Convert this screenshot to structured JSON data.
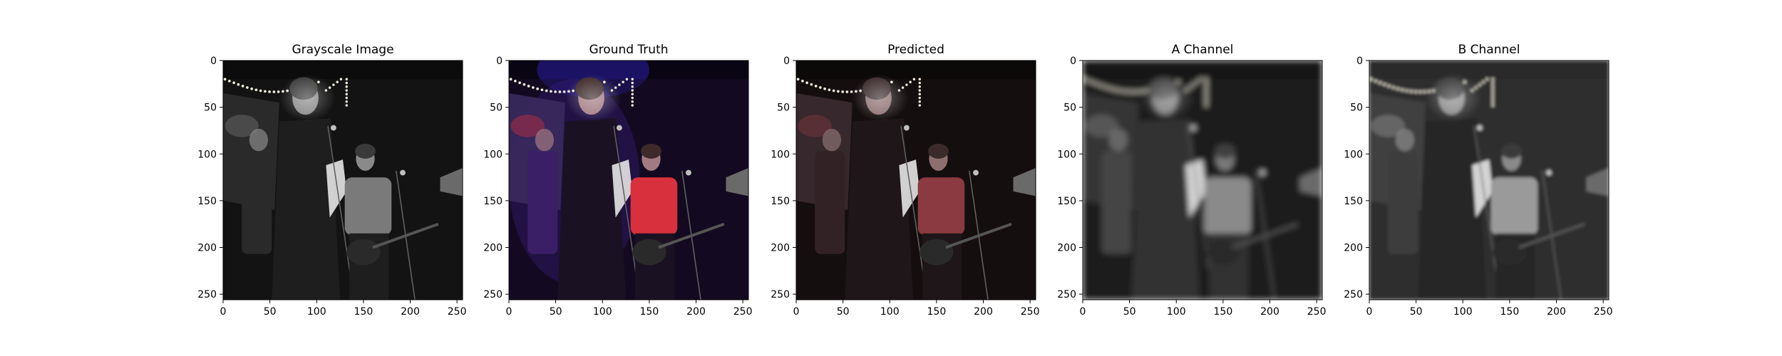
{
  "chart_data": [
    {
      "type": "heatmap",
      "title": "Grayscale Image",
      "image": "grayscale",
      "xlim": [
        0,
        256
      ],
      "ylim": [
        256,
        0
      ],
      "xticks": [
        0,
        50,
        100,
        150,
        200,
        250
      ],
      "yticks": [
        0,
        50,
        100,
        150,
        200,
        250
      ]
    },
    {
      "type": "heatmap",
      "title": "Ground Truth",
      "image": "color",
      "xlim": [
        0,
        256
      ],
      "ylim": [
        256,
        0
      ],
      "xticks": [
        0,
        50,
        100,
        150,
        200,
        250
      ],
      "yticks": [
        0,
        50,
        100,
        150,
        200,
        250
      ]
    },
    {
      "type": "heatmap",
      "title": "Predicted",
      "image": "predicted",
      "xlim": [
        0,
        256
      ],
      "ylim": [
        256,
        0
      ],
      "xticks": [
        0,
        50,
        100,
        150,
        200,
        250
      ],
      "yticks": [
        0,
        50,
        100,
        150,
        200,
        250
      ]
    },
    {
      "type": "heatmap",
      "title": "A Channel",
      "image": "a-channel",
      "xlim": [
        0,
        256
      ],
      "ylim": [
        256,
        0
      ],
      "xticks": [
        0,
        50,
        100,
        150,
        200,
        250
      ],
      "yticks": [
        0,
        50,
        100,
        150,
        200,
        250
      ]
    },
    {
      "type": "heatmap",
      "title": "B Channel",
      "image": "b-channel",
      "xlim": [
        0,
        256
      ],
      "ylim": [
        256,
        0
      ],
      "xticks": [
        0,
        50,
        100,
        150,
        200,
        250
      ],
      "yticks": [
        0,
        50,
        100,
        150,
        200,
        250
      ]
    }
  ]
}
